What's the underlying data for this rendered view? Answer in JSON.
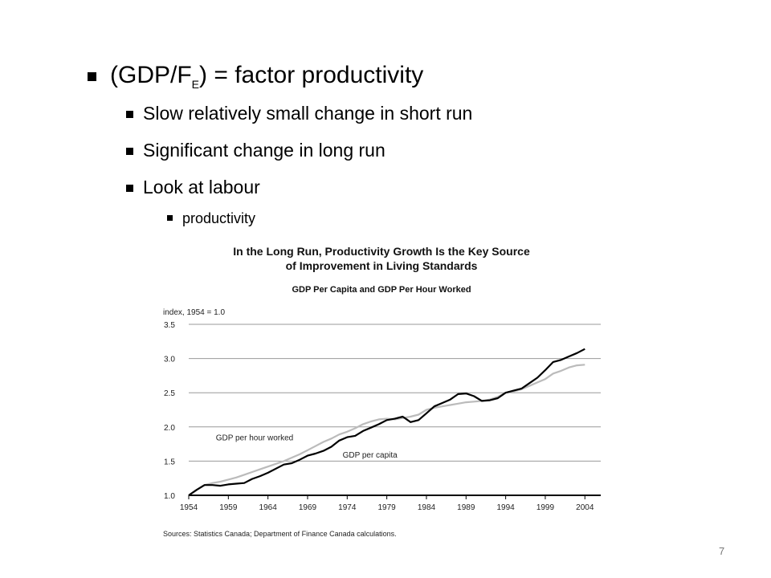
{
  "slide": {
    "bullet1_prefix": "(GDP/F",
    "bullet1_sub": "E",
    "bullet1_suffix": ") = factor productivity",
    "bullet2": "Slow relatively small change in short run",
    "bullet3": "Significant change in long run",
    "bullet4": "Look at labour",
    "bullet5": "productivity",
    "page_number": "7"
  },
  "chart_data": {
    "type": "line",
    "title": "In the Long Run, Productivity Growth Is the Key Source of Improvement in Living Standards",
    "title_line1": "In the Long Run, Productivity Growth Is the Key Source",
    "title_line2": "of Improvement in Living Standards",
    "subtitle": "GDP Per Capita and GDP Per Hour Worked",
    "ylabel": "index, 1954 = 1.0",
    "xlabel": "",
    "source": "Sources: Statistics Canada; Department of Finance Canada calculations.",
    "xlim": [
      1954,
      2006
    ],
    "ylim": [
      1.0,
      3.5
    ],
    "yticks": [
      1.0,
      1.5,
      2.0,
      2.5,
      3.0,
      3.5
    ],
    "yticklabels": [
      "1.0",
      "1.5",
      "2.0",
      "2.5",
      "3.0",
      "3.5"
    ],
    "xticks": [
      1954,
      1959,
      1964,
      1969,
      1974,
      1979,
      1984,
      1989,
      1994,
      1999,
      2004
    ],
    "xticklabels": [
      "1954",
      "1959",
      "1964",
      "1969",
      "1974",
      "1979",
      "1984",
      "1989",
      "1994",
      "1999",
      "2004"
    ],
    "grid": true,
    "series": [
      {
        "name": "GDP per hour worked",
        "color": "#bbbbbb",
        "x": [
          1954,
          1955,
          1956,
          1957,
          1958,
          1959,
          1960,
          1961,
          1962,
          1963,
          1964,
          1965,
          1966,
          1967,
          1968,
          1969,
          1970,
          1971,
          1972,
          1973,
          1974,
          1975,
          1976,
          1977,
          1978,
          1979,
          1980,
          1981,
          1982,
          1983,
          1984,
          1985,
          1986,
          1987,
          1988,
          1989,
          1990,
          1991,
          1992,
          1993,
          1994,
          1995,
          1996,
          1997,
          1998,
          1999,
          2000,
          2001,
          2002,
          2003,
          2004
        ],
        "values": [
          1.0,
          1.08,
          1.15,
          1.18,
          1.2,
          1.23,
          1.26,
          1.3,
          1.34,
          1.38,
          1.42,
          1.46,
          1.5,
          1.55,
          1.6,
          1.66,
          1.72,
          1.78,
          1.83,
          1.89,
          1.93,
          1.98,
          2.04,
          2.08,
          2.11,
          2.12,
          2.11,
          2.13,
          2.15,
          2.18,
          2.25,
          2.28,
          2.3,
          2.32,
          2.34,
          2.36,
          2.37,
          2.38,
          2.4,
          2.44,
          2.5,
          2.52,
          2.55,
          2.6,
          2.65,
          2.7,
          2.78,
          2.82,
          2.87,
          2.9,
          2.91
        ]
      },
      {
        "name": "GDP per capita",
        "color": "#000000",
        "x": [
          1954,
          1955,
          1956,
          1957,
          1958,
          1959,
          1960,
          1961,
          1962,
          1963,
          1964,
          1965,
          1966,
          1967,
          1968,
          1969,
          1970,
          1971,
          1972,
          1973,
          1974,
          1975,
          1976,
          1977,
          1978,
          1979,
          1980,
          1981,
          1982,
          1983,
          1984,
          1985,
          1986,
          1987,
          1988,
          1989,
          1990,
          1991,
          1992,
          1993,
          1994,
          1995,
          1996,
          1997,
          1998,
          1999,
          2000,
          2001,
          2002,
          2003,
          2004
        ],
        "values": [
          1.0,
          1.08,
          1.15,
          1.15,
          1.14,
          1.16,
          1.17,
          1.18,
          1.24,
          1.28,
          1.33,
          1.39,
          1.45,
          1.47,
          1.52,
          1.58,
          1.61,
          1.65,
          1.71,
          1.8,
          1.85,
          1.87,
          1.94,
          1.99,
          2.04,
          2.1,
          2.12,
          2.15,
          2.07,
          2.1,
          2.2,
          2.3,
          2.35,
          2.4,
          2.48,
          2.49,
          2.45,
          2.38,
          2.39,
          2.42,
          2.5,
          2.53,
          2.56,
          2.64,
          2.72,
          2.83,
          2.95,
          2.98,
          3.03,
          3.08,
          3.14
        ]
      }
    ],
    "annotations": [
      {
        "text": "GDP per hour worked",
        "x": 1956,
        "y": 1.85
      },
      {
        "text": "GDP per capita",
        "x": 1972,
        "y": 1.6
      }
    ]
  }
}
